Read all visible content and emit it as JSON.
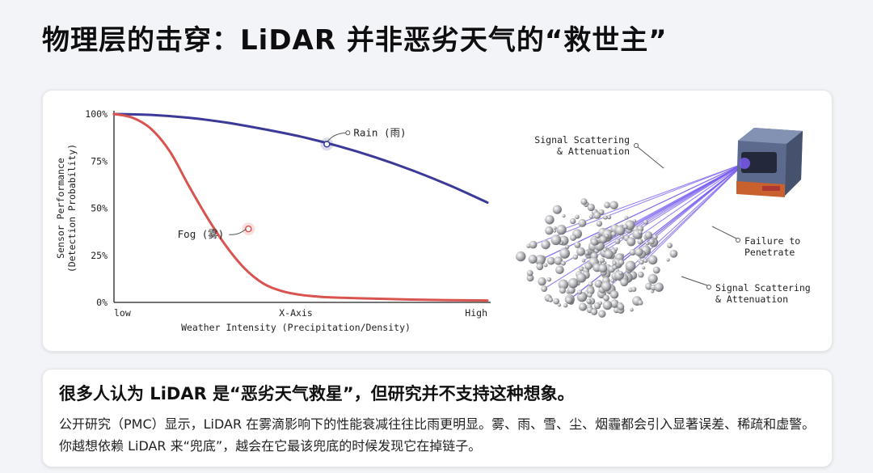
{
  "slide": {
    "title": "物理层的击穿：LiDAR 并非恶劣天气的“救世主”"
  },
  "chart_data": {
    "type": "line",
    "xlabel": "Weather Intensity (Precipitation/Density)",
    "x_axis_name": "X-Axis",
    "x_tick_labels": [
      "low",
      "High"
    ],
    "ylabel_lines": [
      "Sensor Performance",
      "(Detection Probability)"
    ],
    "y_ticks": [
      "100%",
      "75%",
      "50%",
      "25%",
      "0%"
    ],
    "ylim": [
      0,
      100
    ],
    "xlim": [
      0,
      1
    ],
    "grid": false,
    "series": [
      {
        "name": "Rain (雨)",
        "color": "#3b3a98",
        "x": [
          0,
          0.1,
          0.2,
          0.3,
          0.4,
          0.5,
          0.6,
          0.7,
          0.8,
          0.9,
          1.0
        ],
        "values": [
          100,
          99.5,
          98,
          95.5,
          92,
          88,
          83,
          77,
          70,
          62,
          53
        ]
      },
      {
        "name": "Fog (雾)",
        "color": "#d9534f",
        "x": [
          0,
          0.05,
          0.1,
          0.15,
          0.2,
          0.25,
          0.3,
          0.35,
          0.4,
          0.45,
          0.5,
          0.55,
          0.6,
          0.7,
          0.8,
          0.9,
          1.0
        ],
        "values": [
          100,
          98,
          92,
          80,
          62,
          45,
          30,
          18,
          10,
          6,
          4,
          3,
          2.5,
          2,
          1.5,
          1.2,
          1
        ]
      }
    ],
    "annotations": [
      {
        "series": "Rain (雨)",
        "x": 0.57,
        "y": 84
      },
      {
        "series": "Fog (雾)",
        "x": 0.36,
        "y": 39
      }
    ]
  },
  "illustration": {
    "label_top": [
      "Signal Scattering",
      "& Attenuation"
    ],
    "label_middle": [
      "Failure to",
      "Penetrate"
    ],
    "label_bottom": [
      "Signal Scattering",
      "& Attenuation"
    ],
    "device_color": "#5c6a8e",
    "beam_color": "#7a5cf0"
  },
  "summary": {
    "headline": "很多人认为 LiDAR 是“恶劣天气救星”，但研究并不支持这种想象。",
    "body": "公开研究（PMC）显示，LiDAR 在雾滴影响下的性能衰减往往比雨更明显。雾、雨、雪、尘、烟霾都会引入显著误差、稀疏和虚警。你越想依赖 LiDAR 来“兜底”，越会在它最该兜底的时候发现它在掉链子。"
  }
}
